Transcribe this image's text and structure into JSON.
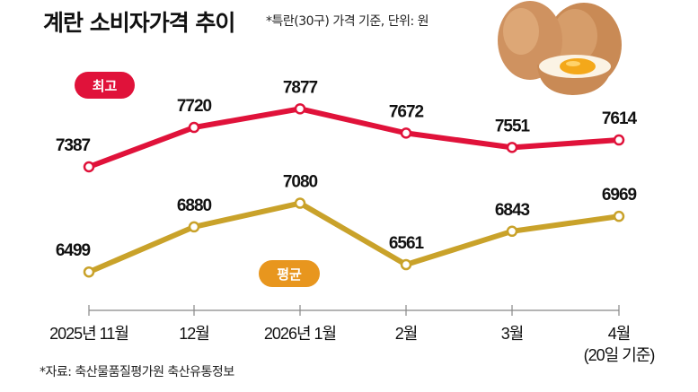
{
  "title": "계란 소비자가격 추이",
  "subtitle": "*특란(30구) 가격 기준, 단위: 원",
  "source": "*자료: 축산물품질평가원 축산유통정보",
  "chart_data": {
    "type": "line",
    "title": "계란 소비자가격 추이",
    "categories": [
      "2025년 11월",
      "12월",
      "2026년 1월",
      "2월",
      "3월",
      "4월"
    ],
    "category_notes": [
      "",
      "",
      "",
      "",
      "",
      "(20일 기준)"
    ],
    "series": [
      {
        "name": "최고",
        "values": [
          7387,
          7720,
          7877,
          7672,
          7551,
          7614
        ],
        "color": "#e0123a"
      },
      {
        "name": "평균",
        "values": [
          6499,
          6880,
          7080,
          6561,
          6843,
          6969
        ],
        "color": "#c9a22a"
      }
    ],
    "grid": false,
    "y_axis_shown": false
  },
  "colors": {
    "badge_average": "#e8961e",
    "marker_fill": "#ffffff"
  }
}
